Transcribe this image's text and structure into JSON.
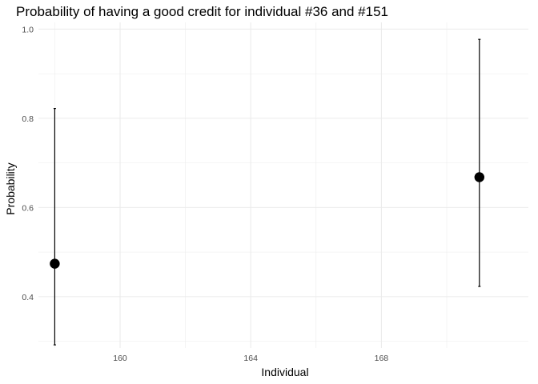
{
  "chart_data": {
    "type": "scatter",
    "title": "Probability of having a good credit for individual #36 and #151",
    "xlabel": "Individual",
    "ylabel": "Probability",
    "xlim": [
      157.5,
      172.5
    ],
    "ylim": [
      0.285,
      1.015
    ],
    "x_ticks": [
      160,
      164,
      168
    ],
    "y_ticks": [
      0.4,
      0.6,
      0.8,
      1.0
    ],
    "y_tick_labels": [
      "0.4",
      "0.6",
      "0.8",
      "1.0"
    ],
    "grid": true,
    "legend": "none",
    "points": [
      {
        "x": 158,
        "y": 0.474,
        "lower": 0.292,
        "upper": 0.822
      },
      {
        "x": 171,
        "y": 0.668,
        "lower": 0.423,
        "upper": 0.977
      }
    ],
    "colors": {
      "point": "#000000",
      "grid": "#ebebeb"
    }
  }
}
